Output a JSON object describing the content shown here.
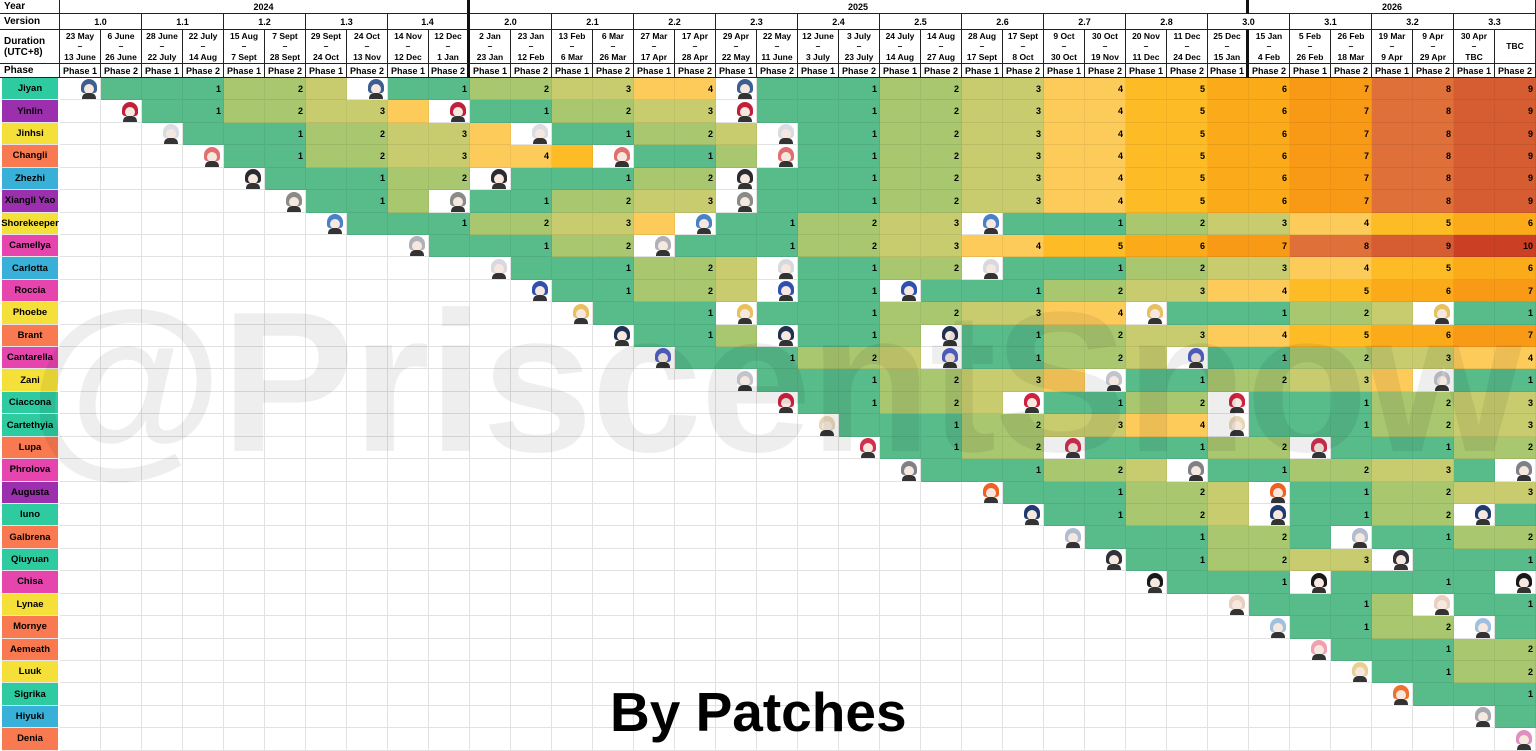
{
  "header": {
    "year_label": "Year",
    "version_label": "Version",
    "duration_label": [
      "Duration",
      "(UTC+8)"
    ],
    "phase_label": "Phase",
    "years": [
      {
        "label": "2024",
        "from_phase": 1,
        "to_phase": 10
      },
      {
        "label": "2025",
        "from_phase": 11,
        "to_phase": 29
      },
      {
        "label": "2026",
        "from_phase": 30,
        "to_phase": 36
      }
    ],
    "versions": [
      "1.0",
      "1.1",
      "1.2",
      "1.3",
      "1.4",
      "2.0",
      "2.1",
      "2.2",
      "2.3",
      "2.4",
      "2.5",
      "2.6",
      "2.7",
      "2.8",
      "3.0",
      "3.1",
      "3.2",
      "3.3"
    ],
    "phase_names": [
      "Phase 1",
      "Phase 2"
    ],
    "dash": "–",
    "durations": [
      [
        "23 May",
        "13 June"
      ],
      [
        "6 June",
        "26 June"
      ],
      [
        "28 June",
        "22 July"
      ],
      [
        "22 July",
        "14 Aug"
      ],
      [
        "15 Aug",
        "7 Sept"
      ],
      [
        "7 Sept",
        "28 Sept"
      ],
      [
        "29 Sept",
        "24 Oct"
      ],
      [
        "24 Oct",
        "13 Nov"
      ],
      [
        "14 Nov",
        "12 Dec"
      ],
      [
        "12 Dec",
        "1 Jan"
      ],
      [
        "2 Jan",
        "23 Jan"
      ],
      [
        "23 Jan",
        "12 Feb"
      ],
      [
        "13 Feb",
        "6 Mar"
      ],
      [
        "6 Mar",
        "26 Mar"
      ],
      [
        "27 Mar",
        "17 Apr"
      ],
      [
        "17 Apr",
        "28 Apr"
      ],
      [
        "29 Apr",
        "22 May"
      ],
      [
        "22 May",
        "11 June"
      ],
      [
        "12 June",
        "3 July"
      ],
      [
        "3 July",
        "23 July"
      ],
      [
        "24 July",
        "14 Aug"
      ],
      [
        "14 Aug",
        "27 Aug"
      ],
      [
        "28 Aug",
        "17 Sept"
      ],
      [
        "17 Sept",
        "8 Oct"
      ],
      [
        "9 Oct",
        "30 Oct"
      ],
      [
        "30 Oct",
        "19 Nov"
      ],
      [
        "20 Nov",
        "11 Dec"
      ],
      [
        "11 Dec",
        "24 Dec"
      ],
      [
        "25 Dec",
        "15 Jan"
      ],
      [
        "15 Jan",
        "4 Feb"
      ],
      [
        "5 Feb",
        "26 Feb"
      ],
      [
        "26 Feb",
        "18 Mar"
      ],
      [
        "19 Mar",
        "9 Apr"
      ],
      [
        "9 Apr",
        "29 Apr"
      ],
      [
        "30 Apr",
        "TBC"
      ],
      [
        "TBC"
      ]
    ]
  },
  "legend_note": "cells: P = banner (portrait), n = patches since last banner (labelled), n- = same fill unlabelled, _ = empty",
  "value_colors": {
    "1": "#57bb8a",
    "2": "#a9c76f",
    "3": "#c8cc6e",
    "4": "#fccb5a",
    "5": "#fdbb26",
    "6": "#fbab1a",
    "7": "#f99a16",
    "8": "#e0703a",
    "9": "#d65c32",
    "10": "#cb4025"
  },
  "element_colors": {
    "teal": "#2ecba0",
    "purple": "#9b2fae",
    "yellow": "#f5e03a",
    "orange": "#f97950",
    "blue": "#38b0d8",
    "pink": "#e545ac"
  },
  "characters": [
    {
      "name": "Jiyan",
      "element": "teal",
      "hair": "#3b5f8f",
      "cells": "P 1- 1- 1 2- 2 3- P 1- 1 2- 2 3- 3 4- 4 P 1- 1- 1 2- 2 3- 3 4- 4 5- 5 6- 6 7- 7 8- 8 9- 9"
    },
    {
      "name": "Yinlin",
      "element": "purple",
      "hair": "#c0203a",
      "cells": "_ P 1- 1 2- 2 3- 3 4- P 1- 1 2- 2 3- 3 P 1- 1- 1 2- 2 3- 3 4- 4 5- 5 6- 6 7- 7 8- 8 9- 9"
    },
    {
      "name": "Jinhsi",
      "element": "yellow",
      "hair": "#d8dce4",
      "cells": "_ _ P 1- 1- 1 2- 2 3- 3 4- P 1- 1 2- 2 3- P 1- 1 2- 2 3- 3 4- 4 5- 5 6- 6 7- 7 8- 8 9- 9"
    },
    {
      "name": "Changli",
      "element": "orange",
      "hair": "#e07070",
      "cells": "_ _ _ P 1- 1 2- 2 3- 3 4- 4 5- P 1- 1 2- P 1- 1 2- 2 3- 3 4- 4 5- 5 6- 6 7- 7 8- 8 9- 9"
    },
    {
      "name": "Zhezhi",
      "element": "blue",
      "hair": "#2a2a30",
      "cells": "_ _ _ _ P 1- 1- 1 2- 2 P 1- 1- 1 2- 2 P 1- 1- 1 2- 2 3- 3 4- 4 5- 5 6- 6 7- 7 8- 8 9- 9"
    },
    {
      "name": "Xiangli Yao",
      "element": "purple",
      "hair": "#8a8a88",
      "cells": "_ _ _ _ _ P 1- 1 2- P 1- 1 2- 2 3- 3 P 1- 1- 1 2- 2 3- 3 4- 4 5- 5 6- 6 7- 7 8- 8 9- 9"
    },
    {
      "name": "Shorekeeper",
      "element": "yellow",
      "hair": "#4a80c8",
      "cells": "_ _ _ _ _ _ P 1- 1- 1 2- 2 3- 3 4- P 1- 1 2- 2 3- 3 P 1- 1- 1 2- 2 3- 3 4- 4 5- 5 6- 6"
    },
    {
      "name": "Camellya",
      "element": "pink",
      "hair": "#b0b0b8",
      "cells": "_ _ _ _ _ _ _ _ P 1- 1- 1 2- 2 P 1- 1- 1 2- 2 3- 3 4- 4 5- 5 6- 6 7- 7 8- 8 9- 9 10- 10"
    },
    {
      "name": "Carlotta",
      "element": "blue",
      "hair": "#d8d8e0",
      "cells": "_ _ _ _ _ _ _ _ _ _ P 1- 1- 1 2- 2 3- P 1- 1 2- 2 P 1- 1- 1 2- 2 3- 3 4- 4 5- 5 6- 6"
    },
    {
      "name": "Roccia",
      "element": "pink",
      "hair": "#3050b0",
      "cells": "_ _ _ _ _ _ _ _ _ _ _ P 1- 1 2- 2 3- P 1- 1 P 1- 1- 1 2- 2 3- 3 4- 4 5- 5 6- 6 7- 7"
    },
    {
      "name": "Phoebe",
      "element": "yellow",
      "hair": "#e8c060",
      "cells": "_ _ _ _ _ _ _ _ _ _ _ _ P 1- 1- 1 P 1- 1- 1 2- 2 3- 3 4- 4 P 1- 1- 1 2- 2 3- P 1- 1"
    },
    {
      "name": "Brant",
      "element": "orange",
      "hair": "#203050",
      "cells": "_ _ _ _ _ _ _ _ _ _ _ _ _ P 1- 1 2- P 1- 1 2- P 1- 1 2- 2 3- 3 4- 4 5- 5 6- 6 7- 7"
    },
    {
      "name": "Cantarella",
      "element": "pink",
      "hair": "#5060c8",
      "cells": "_ _ _ _ _ _ _ _ _ _ _ _ _ _ P 1- 1- 1 2- 2 3- P 1- 1 2- 2 3- P 1- 1 2- 2 3- 3 4- 4"
    },
    {
      "name": "Zani",
      "element": "yellow",
      "hair": "#c0c4cc",
      "cells": "_ _ _ _ _ _ _ _ _ _ _ _ _ _ _ _ P 1- 1- 1 2- 2 3- 3 4- P 1- 1 2- 2 3- 3 4- P 1- 1"
    },
    {
      "name": "Ciaccona",
      "element": "teal",
      "hair": "#d02040",
      "cells": "_ _ _ _ _ _ _ _ _ _ _ _ _ _ _ _ _ P 1- 1 2- 2 3- P 1- 1 2- 2 P 1- 1- 1 2- 2 3- 3"
    },
    {
      "name": "Cartethyia",
      "element": "teal",
      "hair": "#e8d8b8",
      "cells": "_ _ _ _ _ _ _ _ _ _ _ _ _ _ _ _ _ _ P 1- 1- 1 2- 2 3- 3 4- 4 P 1- 1- 1 2- 2 3- 3"
    },
    {
      "name": "Lupa",
      "element": "orange",
      "hair": "#d03050",
      "cells": "_ _ _ _ _ _ _ _ _ _ _ _ _ _ _ _ _ _ _ P 1- 1 2- 2 P 1- 1- 1 2- 2 P 1- 1- 1 2- 2"
    },
    {
      "name": "Phrolova",
      "element": "pink",
      "hair": "#808088",
      "cells": "_ _ _ _ _ _ _ _ _ _ _ _ _ _ _ _ _ _ _ _ P 1- 1- 1 2- 2 3- P 1- 1 2- 2 3- 3 1- P"
    },
    {
      "name": "Augusta",
      "element": "purple",
      "hair": "#f06020",
      "cells": "_ _ _ _ _ _ _ _ _ _ _ _ _ _ _ _ _ _ _ _ _ _ P 1- 1- 1 2- 2 3- P 1- 1 2- 2 3- 3"
    },
    {
      "name": "Iuno",
      "element": "teal",
      "hair": "#203a70",
      "cells": "_ _ _ _ _ _ _ _ _ _ _ _ _ _ _ _ _ _ _ _ _ _ _ P 1- 1 2- 2 3- P 1- 1 2- 2 P 1-"
    },
    {
      "name": "Galbrena",
      "element": "orange",
      "hair": "#b0bcd0",
      "cells": "_ _ _ _ _ _ _ _ _ _ _ _ _ _ _ _ _ _ _ _ _ _ _ _ P 1- 1- 1 2- 2 1- P 1- 1 2- 2"
    },
    {
      "name": "Qiuyuan",
      "element": "teal",
      "hair": "#303038",
      "cells": "_ _ _ _ _ _ _ _ _ _ _ _ _ _ _ _ _ _ _ _ _ _ _ _ _ P 1- 1 2- 2 3- 3 P 1- 1- 1"
    },
    {
      "name": "Chisa",
      "element": "pink",
      "hair": "#181818",
      "cells": "_ _ _ _ _ _ _ _ _ _ _ _ _ _ _ _ _ _ _ _ _ _ _ _ _ _ P 1- 1- 1 P 1- 1- 1 1- P"
    },
    {
      "name": "Lynae",
      "element": "yellow",
      "hair": "#e8d0c0",
      "cells": "_ _ _ _ _ _ _ _ _ _ _ _ _ _ _ _ _ _ _ _ _ _ _ _ _ _ _ _ P 1- 1- 1 2- P 1- 1"
    },
    {
      "name": "Mornye",
      "element": "orange",
      "hair": "#a0c0e0",
      "cells": "_ _ _ _ _ _ _ _ _ _ _ _ _ _ _ _ _ _ _ _ _ _ _ _ _ _ _ _ _ P 1- 1 2- 2 P 1-"
    },
    {
      "name": "Aemeath",
      "element": "orange",
      "hair": "#f0a0b0",
      "cells": "_ _ _ _ _ _ _ _ _ _ _ _ _ _ _ _ _ _ _ _ _ _ _ _ _ _ _ _ _ _ P 1- 1- 1 2- 2"
    },
    {
      "name": "Luuk",
      "element": "yellow",
      "hair": "#e8d090",
      "cells": "_ _ _ _ _ _ _ _ _ _ _ _ _ _ _ _ _ _ _ _ _ _ _ _ _ _ _ _ _ _ _ P 1- 1 2- 2"
    },
    {
      "name": "Sigrika",
      "element": "teal",
      "hair": "#f07030",
      "cells": "_ _ _ _ _ _ _ _ _ _ _ _ _ _ _ _ _ _ _ _ _ _ _ _ _ _ _ _ _ _ _ _ P 1- 1- 1"
    },
    {
      "name": "Hiyuki",
      "element": "blue",
      "hair": "#a8a8b0",
      "cells": "_ _ _ _ _ _ _ _ _ _ _ _ _ _ _ _ _ _ _ _ _ _ _ _ _ _ _ _ _ _ _ _ _ _ P 1-"
    },
    {
      "name": "Denia",
      "element": "orange",
      "hair": "#e090c0",
      "cells": "_ _ _ _ _ _ _ _ _ _ _ _ _ _ _ _ _ _ _ _ _ _ _ _ _ _ _ _ _ _ _ _ _ _ _ P"
    }
  ],
  "watermark": "@PriscentSnow",
  "title": "By Patches"
}
